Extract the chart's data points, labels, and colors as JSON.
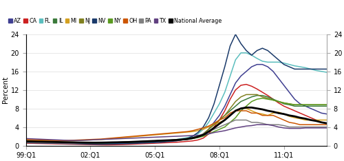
{
  "ylabel": "Percent",
  "ylim": [
    0,
    24
  ],
  "yticks": [
    0,
    4,
    8,
    12,
    16,
    20,
    24
  ],
  "xtick_labels": [
    "99:Q1",
    "02:Q1",
    "05:Q1",
    "08:Q1",
    "11:Q1"
  ],
  "xtick_positions": [
    0,
    12,
    24,
    36,
    48
  ],
  "n_quarters": 57,
  "series": {
    "AZ": {
      "color": "#3f3f91",
      "linewidth": 1.1,
      "data": [
        0.7,
        0.65,
        0.62,
        0.65,
        0.68,
        0.66,
        0.63,
        0.6,
        0.57,
        0.54,
        0.5,
        0.48,
        0.45,
        0.42,
        0.4,
        0.42,
        0.45,
        0.48,
        0.5,
        0.53,
        0.58,
        0.63,
        0.68,
        0.73,
        0.78,
        0.88,
        1.0,
        1.1,
        1.2,
        1.3,
        1.5,
        1.7,
        2.0,
        2.5,
        3.5,
        5.0,
        6.5,
        8.5,
        11.0,
        13.5,
        15.0,
        16.0,
        17.0,
        17.5,
        17.5,
        17.0,
        16.0,
        14.5,
        13.0,
        11.5,
        10.0,
        9.0,
        8.5,
        8.0,
        7.5,
        7.0,
        6.8
      ]
    },
    "CA": {
      "color": "#cc2020",
      "linewidth": 1.1,
      "data": [
        0.5,
        0.48,
        0.45,
        0.43,
        0.4,
        0.38,
        0.35,
        0.33,
        0.3,
        0.28,
        0.25,
        0.22,
        0.2,
        0.18,
        0.16,
        0.15,
        0.16,
        0.18,
        0.2,
        0.25,
        0.3,
        0.35,
        0.4,
        0.45,
        0.5,
        0.55,
        0.6,
        0.65,
        0.7,
        0.8,
        0.9,
        1.0,
        1.2,
        1.6,
        2.5,
        4.0,
        5.5,
        7.5,
        10.0,
        12.0,
        13.0,
        13.2,
        12.8,
        12.2,
        11.5,
        10.8,
        10.0,
        9.2,
        8.5,
        8.0,
        7.5,
        7.0,
        6.5,
        6.0,
        5.5,
        5.0,
        4.8
      ]
    },
    "FL": {
      "color": "#5bbebe",
      "linewidth": 1.1,
      "data": [
        1.0,
        0.95,
        0.9,
        0.85,
        0.8,
        0.78,
        0.75,
        0.72,
        0.7,
        0.68,
        0.65,
        0.62,
        0.6,
        0.58,
        0.55,
        0.55,
        0.58,
        0.6,
        0.62,
        0.65,
        0.7,
        0.75,
        0.8,
        0.85,
        0.9,
        1.0,
        1.1,
        1.2,
        1.3,
        1.5,
        1.7,
        2.0,
        2.5,
        3.5,
        5.0,
        7.0,
        9.0,
        11.5,
        15.0,
        18.5,
        20.0,
        20.0,
        19.5,
        18.8,
        18.2,
        18.0,
        18.0,
        18.0,
        17.8,
        17.5,
        17.2,
        17.0,
        16.8,
        16.5,
        16.2,
        16.0,
        15.8
      ]
    },
    "IL": {
      "color": "#3a7a3a",
      "linewidth": 1.1,
      "data": [
        0.8,
        0.78,
        0.75,
        0.73,
        0.7,
        0.68,
        0.65,
        0.63,
        0.6,
        0.58,
        0.55,
        0.53,
        0.5,
        0.5,
        0.52,
        0.55,
        0.58,
        0.6,
        0.62,
        0.65,
        0.7,
        0.75,
        0.8,
        0.85,
        0.9,
        0.95,
        1.0,
        1.05,
        1.1,
        1.2,
        1.3,
        1.5,
        1.8,
        2.5,
        3.5,
        4.5,
        5.5,
        6.5,
        7.5,
        8.5,
        9.5,
        10.0,
        10.5,
        10.8,
        10.8,
        10.5,
        10.0,
        9.5,
        9.0,
        8.8,
        8.5,
        8.5,
        8.5,
        8.5,
        8.5,
        8.5,
        8.5
      ]
    },
    "MI": {
      "color": "#d4a020",
      "linewidth": 1.1,
      "data": [
        1.2,
        1.15,
        1.1,
        1.08,
        1.05,
        1.02,
        1.0,
        1.0,
        1.0,
        1.05,
        1.1,
        1.15,
        1.2,
        1.25,
        1.3,
        1.4,
        1.5,
        1.6,
        1.7,
        1.8,
        1.9,
        2.0,
        2.1,
        2.2,
        2.3,
        2.4,
        2.5,
        2.6,
        2.7,
        2.8,
        2.9,
        3.0,
        3.2,
        3.5,
        4.0,
        4.5,
        5.0,
        5.5,
        6.5,
        7.5,
        8.0,
        8.0,
        7.5,
        7.0,
        6.8,
        6.5,
        7.0,
        7.2,
        6.8,
        6.3,
        6.0,
        5.8,
        5.5,
        5.5,
        5.5,
        5.5,
        5.5
      ]
    },
    "NJ": {
      "color": "#808020",
      "linewidth": 1.1,
      "data": [
        0.9,
        0.85,
        0.8,
        0.78,
        0.75,
        0.72,
        0.7,
        0.68,
        0.65,
        0.62,
        0.6,
        0.58,
        0.55,
        0.55,
        0.58,
        0.6,
        0.62,
        0.65,
        0.7,
        0.75,
        0.8,
        0.85,
        0.9,
        0.95,
        1.0,
        1.05,
        1.1,
        1.15,
        1.2,
        1.3,
        1.5,
        1.7,
        2.0,
        2.5,
        3.5,
        4.5,
        5.5,
        6.5,
        8.0,
        9.5,
        10.5,
        11.0,
        11.0,
        11.0,
        10.5,
        10.2,
        9.8,
        9.5,
        9.2,
        9.0,
        8.8,
        8.8,
        8.8,
        8.8,
        8.8,
        8.8,
        8.8
      ]
    },
    "NV": {
      "color": "#1a3a6a",
      "linewidth": 1.1,
      "data": [
        0.6,
        0.58,
        0.55,
        0.52,
        0.5,
        0.48,
        0.45,
        0.42,
        0.4,
        0.38,
        0.35,
        0.33,
        0.3,
        0.28,
        0.28,
        0.3,
        0.32,
        0.35,
        0.38,
        0.4,
        0.45,
        0.5,
        0.55,
        0.6,
        0.65,
        0.7,
        0.8,
        0.9,
        1.0,
        1.2,
        1.5,
        2.0,
        2.8,
        4.0,
        6.0,
        9.0,
        13.0,
        17.0,
        21.5,
        24.0,
        22.0,
        20.5,
        19.5,
        20.5,
        21.0,
        20.5,
        19.5,
        18.5,
        17.5,
        17.0,
        16.5,
        16.5,
        16.5,
        16.5,
        16.5,
        16.5,
        16.5
      ]
    },
    "NY": {
      "color": "#5a9a20",
      "linewidth": 1.1,
      "data": [
        0.9,
        0.88,
        0.85,
        0.83,
        0.8,
        0.78,
        0.75,
        0.73,
        0.7,
        0.68,
        0.65,
        0.63,
        0.6,
        0.6,
        0.62,
        0.65,
        0.68,
        0.7,
        0.73,
        0.75,
        0.8,
        0.85,
        0.9,
        0.95,
        1.0,
        1.05,
        1.1,
        1.15,
        1.2,
        1.3,
        1.4,
        1.5,
        1.7,
        2.0,
        2.5,
        3.0,
        3.5,
        4.0,
        5.0,
        6.0,
        7.5,
        8.5,
        9.5,
        10.0,
        10.2,
        10.0,
        9.8,
        9.5,
        9.2,
        9.0,
        8.8,
        8.8,
        8.8,
        8.8,
        8.8,
        8.8,
        8.8
      ]
    },
    "OH": {
      "color": "#cc5500",
      "linewidth": 1.1,
      "data": [
        1.3,
        1.25,
        1.2,
        1.18,
        1.15,
        1.12,
        1.1,
        1.1,
        1.1,
        1.15,
        1.2,
        1.25,
        1.3,
        1.35,
        1.4,
        1.5,
        1.6,
        1.7,
        1.8,
        1.9,
        2.0,
        2.1,
        2.2,
        2.3,
        2.4,
        2.5,
        2.6,
        2.7,
        2.8,
        2.9,
        3.0,
        3.2,
        3.5,
        3.8,
        4.2,
        4.8,
        5.5,
        6.0,
        7.0,
        7.5,
        7.5,
        7.5,
        7.0,
        7.0,
        6.5,
        6.5,
        6.5,
        6.0,
        5.5,
        5.0,
        4.8,
        4.5,
        4.5,
        4.5,
        4.5,
        4.5,
        4.5
      ]
    },
    "PA": {
      "color": "#808080",
      "linewidth": 1.1,
      "data": [
        0.7,
        0.68,
        0.65,
        0.63,
        0.6,
        0.58,
        0.55,
        0.53,
        0.5,
        0.5,
        0.52,
        0.55,
        0.58,
        0.6,
        0.62,
        0.65,
        0.68,
        0.7,
        0.73,
        0.75,
        0.8,
        0.85,
        0.9,
        0.95,
        1.0,
        1.05,
        1.1,
        1.15,
        1.2,
        1.3,
        1.5,
        1.7,
        2.0,
        2.5,
        3.0,
        3.5,
        4.0,
        4.5,
        5.0,
        5.5,
        5.5,
        5.5,
        5.0,
        5.0,
        4.8,
        4.5,
        4.5,
        4.5,
        4.3,
        4.0,
        4.0,
        4.0,
        4.0,
        4.0,
        4.0,
        4.0,
        4.0
      ]
    },
    "TX": {
      "color": "#604080",
      "linewidth": 1.1,
      "data": [
        1.5,
        1.45,
        1.4,
        1.35,
        1.3,
        1.25,
        1.2,
        1.15,
        1.1,
        1.1,
        1.1,
        1.15,
        1.2,
        1.25,
        1.3,
        1.35,
        1.4,
        1.45,
        1.5,
        1.55,
        1.6,
        1.65,
        1.7,
        1.75,
        1.8,
        1.85,
        1.9,
        1.95,
        2.0,
        2.05,
        2.1,
        2.15,
        2.2,
        2.3,
        2.5,
        2.8,
        3.0,
        3.2,
        3.5,
        3.8,
        4.0,
        4.2,
        4.3,
        4.5,
        4.5,
        4.5,
        4.3,
        4.0,
        3.8,
        3.7,
        3.7,
        3.7,
        3.8,
        3.8,
        3.8,
        3.8,
        3.8
      ]
    },
    "National Average": {
      "color": "#000000",
      "linewidth": 2.0,
      "data": [
        0.9,
        0.88,
        0.85,
        0.83,
        0.8,
        0.78,
        0.75,
        0.72,
        0.7,
        0.68,
        0.65,
        0.63,
        0.62,
        0.62,
        0.63,
        0.65,
        0.68,
        0.7,
        0.73,
        0.75,
        0.8,
        0.85,
        0.9,
        0.95,
        1.0,
        1.05,
        1.1,
        1.15,
        1.2,
        1.3,
        1.4,
        1.6,
        1.9,
        2.3,
        3.0,
        3.8,
        4.7,
        5.5,
        6.5,
        7.5,
        8.0,
        8.2,
        8.2,
        8.0,
        7.8,
        7.5,
        7.3,
        7.0,
        6.8,
        6.5,
        6.3,
        6.0,
        5.8,
        5.5,
        5.3,
        5.0,
        4.8
      ]
    }
  },
  "legend_order": [
    "AZ",
    "CA",
    "FL",
    "IL",
    "MI",
    "NJ",
    "NV",
    "NY",
    "OH",
    "PA",
    "TX",
    "National Average"
  ],
  "legend_colors": {
    "AZ": "#3f3f91",
    "CA": "#cc2020",
    "FL": "#5bbebe",
    "IL": "#3a7a3a",
    "MI": "#d4a020",
    "NJ": "#808020",
    "NV": "#1a3a6a",
    "NY": "#5a9a20",
    "OH": "#cc5500",
    "PA": "#808080",
    "TX": "#604080",
    "National Average": "#000000"
  },
  "legend_marker_colors": {
    "AZ": "#3f3f91",
    "CA": "#cc2020",
    "FL": "#5bbebe",
    "IL": "#3a7a3a",
    "MI": "#d4a020",
    "NJ": "#808020",
    "NV": "#1a3a6a",
    "NY": "#5a9a20",
    "OH": "#cc5500",
    "PA": "#808080",
    "TX": "#604080",
    "National Average": "#000000"
  }
}
